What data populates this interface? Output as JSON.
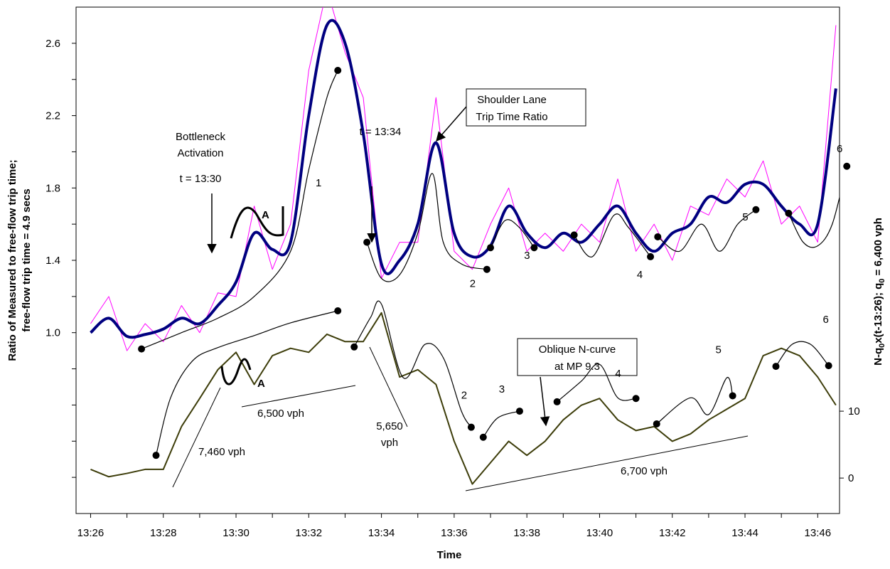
{
  "chart_data": {
    "type": "line",
    "xlabel": "Time",
    "ylabel": [
      "Ratio of Measured to free-flow trip time;",
      "free-flow trip time = 4.9 secs"
    ],
    "y2label": [
      "N-q",
      "0",
      "x(t-13:26); q",
      "0",
      " = 6,400 vph"
    ],
    "xlim": [
      25.6,
      46.6
    ],
    "xticks": [
      {
        "value": 26,
        "label": "13:26"
      },
      {
        "value": 28,
        "label": "13:28"
      },
      {
        "value": 30,
        "label": "13:30"
      },
      {
        "value": 32,
        "label": "13:32"
      },
      {
        "value": 34,
        "label": "13:34"
      },
      {
        "value": 36,
        "label": "13:36"
      },
      {
        "value": 38,
        "label": "13:38"
      },
      {
        "value": 40,
        "label": "13:40"
      },
      {
        "value": 42,
        "label": "13:42"
      },
      {
        "value": 44,
        "label": "13:44"
      },
      {
        "value": 46,
        "label": "13:46"
      }
    ],
    "xminorticks": [
      27,
      29,
      31,
      33,
      35,
      37,
      39,
      41,
      43,
      45
    ],
    "ylim": [
      0,
      2.8
    ],
    "yticks": [
      {
        "value": 1,
        "label": "1.0"
      },
      1.4,
      1.8,
      2.2,
      2.6
    ],
    "yminorticks": [
      0.2,
      0.4,
      0.6,
      0.8,
      1.2,
      1.6,
      2.0,
      2.4
    ],
    "y2lim": [
      -5.3,
      70.4
    ],
    "y2ticks": [
      0,
      10
    ],
    "x": [
      26,
      26.5,
      27,
      27.5,
      28,
      28.5,
      29,
      29.5,
      30,
      30.5,
      31,
      31.5,
      32,
      32.5,
      33,
      33.5,
      34,
      34.5,
      35,
      35.5,
      36,
      36.5,
      37,
      37.5,
      38,
      38.5,
      39,
      39.5,
      40,
      40.5,
      41,
      41.5,
      42,
      42.5,
      43,
      43.5,
      44,
      44.5,
      45,
      45.5,
      46,
      46.5
    ],
    "series": [
      {
        "color": "#ff00ff",
        "width": 1,
        "values": [
          1.05,
          1.2,
          0.9,
          1.05,
          0.95,
          1.15,
          1.0,
          1.22,
          1.2,
          1.7,
          1.35,
          1.6,
          2.45,
          2.9,
          2.55,
          2.3,
          1.3,
          1.5,
          1.5,
          2.3,
          1.45,
          1.35,
          1.6,
          1.8,
          1.45,
          1.55,
          1.45,
          1.6,
          1.5,
          1.85,
          1.45,
          1.6,
          1.4,
          1.7,
          1.65,
          1.85,
          1.75,
          1.95,
          1.6,
          1.7,
          1.5,
          2.7
        ]
      },
      {
        "color": "#000080",
        "width": 4,
        "values": [
          1.0,
          1.08,
          0.98,
          0.99,
          1.02,
          1.08,
          1.05,
          1.15,
          1.28,
          1.55,
          1.46,
          1.5,
          2.2,
          2.7,
          2.6,
          2.1,
          1.38,
          1.4,
          1.6,
          2.05,
          1.55,
          1.42,
          1.48,
          1.7,
          1.55,
          1.47,
          1.55,
          1.5,
          1.6,
          1.7,
          1.55,
          1.45,
          1.55,
          1.6,
          1.75,
          1.72,
          1.82,
          1.82,
          1.7,
          1.6,
          1.6,
          2.35
        ]
      },
      {
        "color": "#3d3d0a",
        "width": 2,
        "axis": "y2",
        "values": [
          1.3,
          0.2,
          0.7,
          1.3,
          1.3,
          7.7,
          11.9,
          16.2,
          18.8,
          14,
          18.3,
          19.4,
          18.8,
          21.5,
          20.4,
          20.4,
          24.7,
          15.1,
          16.2,
          14,
          5.5,
          -0.9,
          2.3,
          5.5,
          3.4,
          5.5,
          8.7,
          10.9,
          11.9,
          8.7,
          7.1,
          7.7,
          5.5,
          6.6,
          8.7,
          10.3,
          11.9,
          18.3,
          19.4,
          18.3,
          15.1,
          10.9
        ]
      }
    ],
    "curves": [
      {
        "label": "1",
        "x": [
          27.4,
          28.5,
          29.5,
          30.5,
          31.5,
          32.0,
          32.5,
          32.8
        ],
        "values": [
          0.91,
          1.0,
          1.08,
          1.2,
          1.45,
          1.9,
          2.3,
          2.45
        ]
      },
      {
        "label": "2",
        "x": [
          33.6,
          34.0,
          34.5,
          35.0,
          35.4,
          35.7,
          36.2,
          36.9
        ],
        "values": [
          1.5,
          1.3,
          1.32,
          1.55,
          1.88,
          1.5,
          1.38,
          1.35
        ]
      },
      {
        "label": "3",
        "x": [
          37.0,
          37.4,
          37.8,
          38.2
        ],
        "values": [
          1.47,
          1.62,
          1.58,
          1.47
        ]
      },
      {
        "label": "4",
        "x": [
          39.3,
          39.8,
          40.4,
          40.8,
          41.4
        ],
        "values": [
          1.54,
          1.42,
          1.65,
          1.58,
          1.42
        ]
      },
      {
        "label": "5",
        "x": [
          41.6,
          42.2,
          42.8,
          43.3,
          43.8,
          44.3
        ],
        "values": [
          1.53,
          1.45,
          1.6,
          1.45,
          1.6,
          1.68
        ]
      },
      {
        "label": "6",
        "x": [
          45.2,
          45.6,
          46.0,
          46.4,
          46.8
        ],
        "values": [
          1.66,
          1.5,
          1.48,
          1.6,
          1.92
        ]
      },
      {
        "label": "1",
        "axis": "y2",
        "x": [
          27.8,
          28.2,
          28.8,
          29.5,
          30.5,
          31.5,
          32.8
        ],
        "values": [
          3.4,
          12,
          17.5,
          19.5,
          21.3,
          23.2,
          25
        ]
      },
      {
        "label": "2",
        "axis": "y2",
        "x": [
          33.25,
          33.7,
          34.0,
          34.6,
          35.2,
          35.7,
          36.2,
          36.47
        ],
        "values": [
          19.6,
          24,
          26,
          15,
          20,
          18,
          10,
          7.6
        ]
      },
      {
        "label": "3",
        "axis": "y2",
        "x": [
          36.8,
          37.2,
          37.8
        ],
        "values": [
          6.1,
          9,
          10
        ]
      },
      {
        "label": "4",
        "axis": "y2",
        "x": [
          38.83,
          39.5,
          40.0,
          40.5,
          41.0
        ],
        "values": [
          11.4,
          14.5,
          17,
          12,
          11.9
        ]
      },
      {
        "label": "5",
        "axis": "y2",
        "x": [
          41.57,
          42.5,
          43.0,
          43.5,
          43.66
        ],
        "values": [
          8.1,
          12,
          9.5,
          15,
          12.3
        ]
      },
      {
        "label": "6",
        "axis": "y2",
        "x": [
          44.85,
          45.3,
          45.8,
          46.3
        ],
        "values": [
          16.7,
          20,
          20,
          16.8
        ]
      }
    ],
    "annotations": [
      "Bottleneck",
      "Activation",
      "t = 13:30",
      "t = 13:34",
      "Shoulder Lane",
      "Trip Time Ratio",
      "Oblique N-curve",
      "at MP 9.3",
      "7,460 vph",
      "6,500 vph",
      "5,650",
      "vph",
      "6,700 vph",
      "A",
      "A"
    ]
  }
}
